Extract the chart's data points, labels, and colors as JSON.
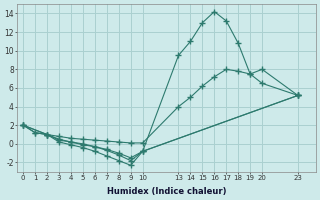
{
  "xlabel": "Humidex (Indice chaleur)",
  "bg_color": "#ceeaea",
  "line_color": "#2d7a6e",
  "grid_color": "#aad0d0",
  "line1_x": [
    0,
    1,
    2,
    3,
    4,
    5,
    6,
    7,
    8,
    9,
    10,
    13,
    14,
    15,
    16,
    17,
    18,
    19,
    20,
    23
  ],
  "line1_y": [
    2.0,
    1.2,
    1.0,
    0.8,
    0.6,
    0.5,
    0.4,
    0.3,
    0.2,
    0.1,
    0.1,
    4.0,
    5.0,
    6.2,
    7.2,
    8.0,
    7.8,
    7.5,
    8.0,
    5.2
  ],
  "line2_x": [
    0,
    1,
    2,
    3,
    4,
    5,
    6,
    7,
    8,
    9,
    10,
    13,
    14,
    15,
    16,
    17,
    18,
    19,
    20,
    23
  ],
  "line2_y": [
    2.0,
    1.2,
    1.0,
    0.5,
    0.2,
    -0.1,
    -0.3,
    -0.6,
    -1.0,
    -1.5,
    -0.8,
    9.5,
    11.0,
    13.0,
    14.2,
    13.2,
    10.8,
    7.5,
    6.5,
    5.2
  ],
  "line3_x": [
    0,
    2,
    3,
    4,
    5,
    6,
    7,
    8,
    9,
    10,
    23
  ],
  "line3_y": [
    2.0,
    1.0,
    0.4,
    0.2,
    0.0,
    -0.3,
    -0.7,
    -1.2,
    -1.8,
    -0.8,
    5.2
  ],
  "line4_x": [
    0,
    2,
    3,
    4,
    5,
    6,
    7,
    8,
    9,
    10,
    23
  ],
  "line4_y": [
    2.0,
    1.0,
    0.2,
    -0.1,
    -0.4,
    -0.8,
    -1.3,
    -1.8,
    -2.3,
    -0.8,
    5.2
  ],
  "ylim": [
    -3.0,
    15.0
  ],
  "yticks": [
    -2,
    0,
    2,
    4,
    6,
    8,
    10,
    12,
    14
  ],
  "xticks": [
    0,
    1,
    2,
    3,
    4,
    5,
    6,
    7,
    8,
    9,
    10,
    13,
    14,
    15,
    16,
    17,
    18,
    19,
    20,
    23
  ],
  "xlim": [
    -0.5,
    24.5
  ]
}
